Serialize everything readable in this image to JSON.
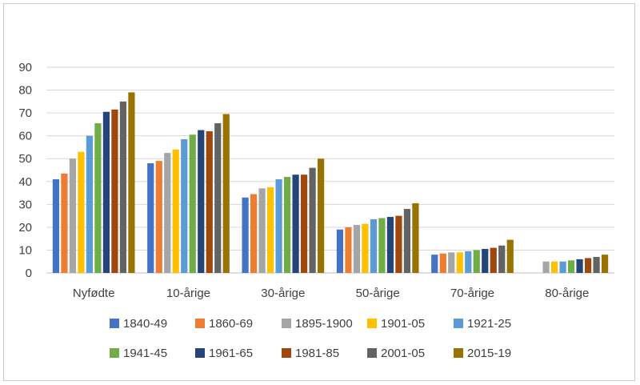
{
  "chart_data": {
    "type": "bar",
    "title": "",
    "xlabel": "",
    "ylabel": "",
    "ylim": [
      0,
      90
    ],
    "yticks": [
      0,
      10,
      20,
      30,
      40,
      50,
      60,
      70,
      80,
      90
    ],
    "grid": true,
    "legend_position": "bottom",
    "categories": [
      "Nyfødte",
      "10-årige",
      "30-årige",
      "50-årige",
      "70-årige",
      "80-årige"
    ],
    "series": [
      {
        "name": "1840-49",
        "color": "#4472C4",
        "values": [
          41,
          48,
          33,
          19,
          8,
          null
        ]
      },
      {
        "name": "1860-69",
        "color": "#ED7D31",
        "values": [
          43.5,
          49,
          34.5,
          20,
          8.5,
          null
        ]
      },
      {
        "name": "1895-1900",
        "color": "#A5A5A5",
        "values": [
          50,
          52.5,
          37,
          21,
          9,
          5
        ]
      },
      {
        "name": "1901-05",
        "color": "#FFC000",
        "values": [
          53,
          54,
          37.5,
          21.5,
          9,
          5
        ]
      },
      {
        "name": "1921-25",
        "color": "#5B9BD5",
        "values": [
          60,
          58.5,
          41,
          23.5,
          9.5,
          5
        ]
      },
      {
        "name": "1941-45",
        "color": "#70AD47",
        "values": [
          65.5,
          60.5,
          42,
          24,
          10,
          5.5
        ]
      },
      {
        "name": "1961-65",
        "color": "#264478",
        "values": [
          70.5,
          62.5,
          43,
          24.5,
          10.5,
          6
        ]
      },
      {
        "name": "1981-85",
        "color": "#9E480E",
        "values": [
          71.5,
          62,
          43,
          25,
          11,
          6.5
        ]
      },
      {
        "name": "2001-05",
        "color": "#636363",
        "values": [
          75,
          65.5,
          46,
          28,
          12,
          7
        ]
      },
      {
        "name": "2015-19",
        "color": "#997300",
        "values": [
          79,
          69.5,
          50,
          30.5,
          14.5,
          8
        ]
      }
    ]
  }
}
